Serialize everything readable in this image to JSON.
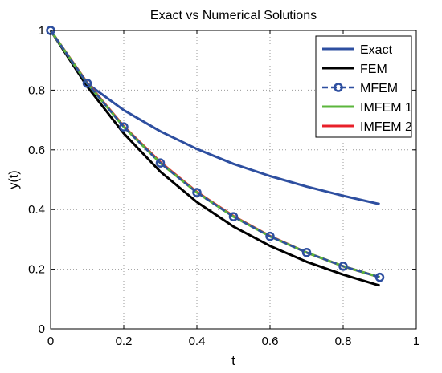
{
  "chart_data": {
    "type": "line",
    "title": "Exact vs Numerical Solutions",
    "xlabel": "t",
    "ylabel": "y(t)",
    "xlim": [
      0,
      1
    ],
    "ylim": [
      0,
      1
    ],
    "grid": true,
    "legend_position": "top-right",
    "xticks": [
      {
        "value": 0,
        "label": "0"
      },
      {
        "value": 0.2,
        "label": "0.2"
      },
      {
        "value": 0.4,
        "label": "0.4"
      },
      {
        "value": 0.6,
        "label": "0.6"
      },
      {
        "value": 0.8,
        "label": "0.8"
      },
      {
        "value": 1,
        "label": "1"
      }
    ],
    "yticks": [
      {
        "value": 0,
        "label": "0"
      },
      {
        "value": 0.2,
        "label": "0.2"
      },
      {
        "value": 0.4,
        "label": "0.4"
      },
      {
        "value": 0.6,
        "label": "0.6"
      },
      {
        "value": 0.8,
        "label": "0.8"
      },
      {
        "value": 1,
        "label": "1"
      }
    ],
    "x": [
      0,
      0.1,
      0.2,
      0.3,
      0.4,
      0.5,
      0.6,
      0.7,
      0.8,
      0.9
    ],
    "series": [
      {
        "name": "Exact",
        "color": "#2e4fa0",
        "style": "solid",
        "marker": "none",
        "values": [
          1.0,
          0.822,
          0.733,
          0.662,
          0.603,
          0.553,
          0.512,
          0.477,
          0.446,
          0.418
        ]
      },
      {
        "name": "FEM",
        "color": "#000000",
        "style": "solid",
        "marker": "none",
        "values": [
          1.0,
          0.812,
          0.655,
          0.527,
          0.425,
          0.343,
          0.278,
          0.225,
          0.182,
          0.145
        ]
      },
      {
        "name": "MFEM",
        "color": "#2e4fa0",
        "style": "dashed",
        "marker": "circle",
        "values": [
          1.0,
          0.823,
          0.677,
          0.556,
          0.457,
          0.376,
          0.31,
          0.256,
          0.21,
          0.173
        ]
      },
      {
        "name": "IMFEM 1",
        "color": "#5bb63c",
        "style": "solid",
        "marker": "none",
        "values": [
          1.0,
          0.823,
          0.677,
          0.556,
          0.457,
          0.376,
          0.31,
          0.256,
          0.21,
          0.173
        ]
      },
      {
        "name": "IMFEM 2",
        "color": "#e8202a",
        "style": "solid",
        "marker": "none",
        "values": [
          1.0,
          0.825,
          0.679,
          0.559,
          0.459,
          0.378,
          0.311,
          0.256,
          0.21,
          0.173
        ]
      }
    ]
  }
}
